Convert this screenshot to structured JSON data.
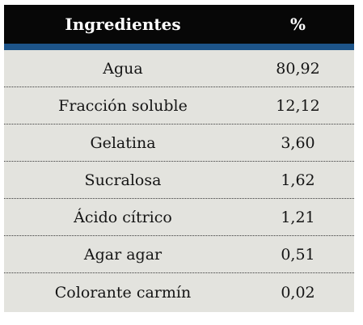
{
  "table": {
    "headers": [
      "Ingredientes",
      "%"
    ],
    "rows": [
      {
        "ingredient": "Agua",
        "percent": "80,92"
      },
      {
        "ingredient": "Fracción soluble",
        "percent": "12,12"
      },
      {
        "ingredient": "Gelatina",
        "percent": "3,60"
      },
      {
        "ingredient": "Sucralosa",
        "percent": "1,62"
      },
      {
        "ingredient": "Ácido cítrico",
        "percent": "1,21"
      },
      {
        "ingredient": "Agar agar",
        "percent": "0,51"
      },
      {
        "ingredient": "Colorante carmín",
        "percent": "0,02"
      }
    ]
  },
  "colors": {
    "header_bg": "#070707",
    "header_text": "#ffffff",
    "accent_bar": "#1d5489",
    "body_bg": "#e3e3de"
  }
}
